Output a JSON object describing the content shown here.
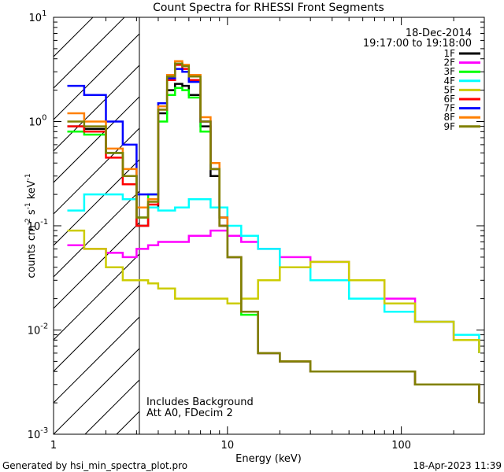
{
  "chart_data": {
    "type": "line",
    "title": "Count Spectra for RHESSI Front Segments",
    "xlabel": "Energy (keV)",
    "ylabel_parts": [
      "counts cm",
      "-2",
      " s",
      "-1",
      " keV",
      "-1"
    ],
    "xscale": "log",
    "yscale": "log",
    "xlim": [
      1,
      300
    ],
    "ylim": [
      0.001,
      10
    ],
    "x_ticks": [
      {
        "value": 1,
        "label": "1"
      },
      {
        "value": 10,
        "label": "10"
      },
      {
        "value": 100,
        "label": "100"
      }
    ],
    "y_ticks": [
      {
        "value": 10,
        "base": "10",
        "exp": "1"
      },
      {
        "value": 1,
        "base": "10",
        "exp": "0"
      },
      {
        "value": 0.1,
        "base": "10",
        "exp": "-1"
      },
      {
        "value": 0.01,
        "base": "10",
        "exp": "-2"
      },
      {
        "value": 0.001,
        "base": "10",
        "exp": "-3"
      }
    ],
    "shaded_region": {
      "x_from": 1,
      "x_to": 3,
      "pattern": "diagonal-hatch",
      "meaning": "below 3 keV"
    },
    "annotation_lines": [
      "Includes Background",
      "Att A0, FDecim 2"
    ],
    "legend_header": [
      "18-Dec-2014",
      "19:17:00 to 19:18:00"
    ],
    "series": [
      {
        "name": "1F",
        "color": "#000000",
        "x": [
          1.2,
          1.5,
          2,
          2.5,
          3,
          3.5,
          4,
          4.5,
          5,
          5.5,
          6,
          7,
          8,
          9,
          10,
          12,
          15,
          20,
          30,
          50,
          80,
          120,
          200,
          280
        ],
        "y": [
          0.9,
          0.85,
          0.5,
          0.3,
          0.1,
          0.15,
          1.2,
          2.0,
          2.3,
          2.2,
          1.8,
          0.9,
          0.3,
          0.1,
          0.05,
          0.015,
          0.006,
          0.005,
          0.004,
          0.004,
          0.004,
          0.003,
          0.003,
          0.002
        ]
      },
      {
        "name": "2F",
        "color": "#ff00ff",
        "x": [
          1.2,
          1.5,
          2,
          2.5,
          3,
          3.5,
          4,
          5,
          6,
          8,
          10,
          12,
          15,
          20,
          30,
          50,
          80,
          120,
          200,
          280
        ],
        "y": [
          0.065,
          0.06,
          0.055,
          0.05,
          0.06,
          0.065,
          0.07,
          0.07,
          0.08,
          0.09,
          0.08,
          0.07,
          0.06,
          0.05,
          0.045,
          0.03,
          0.02,
          0.012,
          0.008,
          0.006
        ]
      },
      {
        "name": "3F",
        "color": "#00ff00",
        "x": [
          1.2,
          1.5,
          2,
          2.5,
          3,
          3.5,
          4,
          4.5,
          5,
          5.5,
          6,
          7,
          8,
          9,
          10,
          12,
          15,
          20,
          30,
          50,
          80,
          120,
          200,
          280
        ],
        "y": [
          0.8,
          0.75,
          0.5,
          0.3,
          0.12,
          0.2,
          1.0,
          1.8,
          2.1,
          2.0,
          1.7,
          0.8,
          0.35,
          0.12,
          0.05,
          0.014,
          0.006,
          0.005,
          0.004,
          0.004,
          0.004,
          0.003,
          0.003,
          0.002
        ]
      },
      {
        "name": "4F",
        "color": "#00ffff",
        "x": [
          1.2,
          1.5,
          2,
          2.5,
          3,
          3.5,
          4,
          5,
          6,
          8,
          10,
          12,
          15,
          20,
          30,
          50,
          80,
          120,
          200,
          280
        ],
        "y": [
          0.14,
          0.2,
          0.2,
          0.18,
          0.15,
          0.15,
          0.14,
          0.15,
          0.18,
          0.15,
          0.1,
          0.08,
          0.06,
          0.04,
          0.03,
          0.02,
          0.015,
          0.012,
          0.009,
          0.006
        ]
      },
      {
        "name": "5F",
        "color": "#cccc00",
        "x": [
          1.2,
          1.5,
          2,
          2.5,
          3,
          3.5,
          4,
          5,
          6,
          8,
          10,
          12,
          15,
          20,
          30,
          50,
          80,
          120,
          200,
          280
        ],
        "y": [
          0.09,
          0.06,
          0.04,
          0.03,
          0.03,
          0.028,
          0.025,
          0.02,
          0.02,
          0.02,
          0.018,
          0.02,
          0.03,
          0.04,
          0.045,
          0.03,
          0.018,
          0.012,
          0.008,
          0.006
        ]
      },
      {
        "name": "6F",
        "color": "#ff0000",
        "x": [
          1.2,
          1.5,
          2,
          2.5,
          3,
          3.5,
          4,
          4.5,
          5,
          5.5,
          6,
          7,
          8,
          9,
          10,
          12,
          15,
          20,
          30,
          50,
          80,
          120,
          200,
          280
        ],
        "y": [
          0.9,
          0.8,
          0.45,
          0.25,
          0.1,
          0.16,
          1.3,
          2.5,
          3.5,
          3.2,
          2.5,
          1.0,
          0.35,
          0.1,
          0.05,
          0.015,
          0.006,
          0.005,
          0.004,
          0.004,
          0.004,
          0.003,
          0.003,
          0.002
        ]
      },
      {
        "name": "7F",
        "color": "#0000ff",
        "x": [
          1.2,
          1.5,
          2,
          2.5,
          3,
          3.5,
          4,
          4.5,
          5,
          5.5,
          6,
          7,
          8,
          9,
          10,
          12,
          15,
          20,
          30,
          50,
          80,
          120,
          200,
          280
        ],
        "y": [
          2.2,
          1.8,
          1.0,
          0.6,
          0.2,
          0.2,
          1.5,
          2.6,
          3.2,
          3.0,
          2.4,
          1.0,
          0.35,
          0.12,
          0.05,
          0.015,
          0.006,
          0.005,
          0.004,
          0.004,
          0.004,
          0.003,
          0.003,
          0.002
        ]
      },
      {
        "name": "8F",
        "color": "#ff8000",
        "x": [
          1.2,
          1.5,
          2,
          2.5,
          3,
          3.5,
          4,
          4.5,
          5,
          5.5,
          6,
          7,
          8,
          9,
          10,
          12,
          15,
          20,
          30,
          50,
          80,
          120,
          200,
          280
        ],
        "y": [
          1.2,
          1.0,
          0.55,
          0.35,
          0.15,
          0.18,
          1.4,
          2.8,
          3.8,
          3.5,
          2.8,
          1.1,
          0.4,
          0.12,
          0.05,
          0.015,
          0.006,
          0.005,
          0.004,
          0.004,
          0.004,
          0.003,
          0.003,
          0.002
        ]
      },
      {
        "name": "9F",
        "color": "#808000",
        "x": [
          1.2,
          1.5,
          2,
          2.5,
          3,
          3.5,
          4,
          4.5,
          5,
          5.5,
          6,
          7,
          8,
          9,
          10,
          12,
          15,
          20,
          30,
          50,
          80,
          120,
          200,
          280
        ],
        "y": [
          1.0,
          0.9,
          0.5,
          0.3,
          0.12,
          0.17,
          1.3,
          2.7,
          3.6,
          3.4,
          2.7,
          1.0,
          0.35,
          0.1,
          0.05,
          0.015,
          0.006,
          0.005,
          0.004,
          0.004,
          0.004,
          0.003,
          0.003,
          0.002
        ]
      }
    ]
  },
  "footer": {
    "left": "Generated by hsi_min_spectra_plot.pro",
    "right": "18-Apr-2023 11:39"
  }
}
